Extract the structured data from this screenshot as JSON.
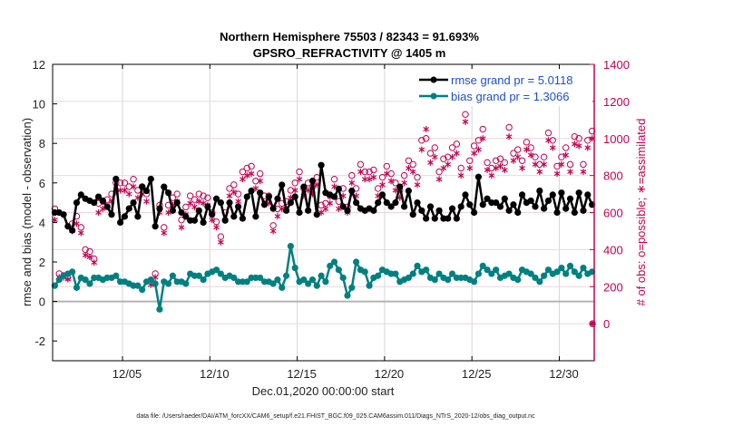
{
  "chart_data": {
    "type": "line",
    "title": "Northern Hemisphere 75503 / 82343 = 91.693%",
    "subtitle": "GPSRO_REFRACTIVITY @ 1405 m",
    "xlabel": "Dec.01,2020 00:00:00 start",
    "ylabel": "rmse and bias (model - observation)",
    "y2label": "# of obs: o=possible; ∗=assimilated",
    "footnote": "data file: /Users/raeder/DAI/ATM_forcXX/CAM6_setup/f.e21.FHIST_BGC.f09_025.CAM6assim.011/Diags_NTrS_2020-12/obs_diag_output.nc",
    "x_unit": "days since Dec.01,2020 00:00:00",
    "xlim": [
      0,
      31
    ],
    "ylim": [
      -3,
      12
    ],
    "y2lim": [
      -200,
      1400
    ],
    "grid": true,
    "legend_position": "top-right",
    "x_ticks": [
      {
        "value": 4,
        "label": "12/05"
      },
      {
        "value": 9,
        "label": "12/10"
      },
      {
        "value": 14,
        "label": "12/15"
      },
      {
        "value": 19,
        "label": "12/20"
      },
      {
        "value": 24,
        "label": "12/25"
      },
      {
        "value": 29,
        "label": "12/30"
      }
    ],
    "y_ticks": [
      {
        "value": -2,
        "label": "-2"
      },
      {
        "value": 0,
        "label": "0"
      },
      {
        "value": 2,
        "label": "2"
      },
      {
        "value": 4,
        "label": "4"
      },
      {
        "value": 6,
        "label": "6"
      },
      {
        "value": 8,
        "label": "8"
      },
      {
        "value": 10,
        "label": "10"
      },
      {
        "value": 12,
        "label": "12"
      }
    ],
    "y2_ticks": [
      {
        "value": 0,
        "label": "0"
      },
      {
        "value": 200,
        "label": "200"
      },
      {
        "value": 400,
        "label": "400"
      },
      {
        "value": 600,
        "label": "600"
      },
      {
        "value": 800,
        "label": "800"
      },
      {
        "value": 1000,
        "label": "1000"
      },
      {
        "value": 1200,
        "label": "1200"
      },
      {
        "value": 1400,
        "label": "1400"
      }
    ],
    "x_start": 0.125,
    "x_step": 0.25,
    "series": [
      {
        "name": "rmse grand pr = 5.0118",
        "axis": "left",
        "color": "#000000",
        "marker": "filled-circle",
        "values": [
          4.5,
          4.5,
          4.4,
          3.8,
          3.6,
          5.0,
          5.4,
          5.2,
          5.1,
          5.0,
          5.3,
          5.1,
          4.8,
          4.4,
          6.2,
          4.0,
          4.3,
          4.7,
          5.0,
          4.3,
          5.8,
          5.6,
          6.2,
          3.8,
          4.7,
          5.8,
          5.5,
          4.6,
          5.0,
          4.5,
          4.3,
          4.1,
          4.1,
          4.6,
          4.0,
          4.8,
          4.4,
          5.2,
          5.0,
          4.1,
          5.0,
          4.3,
          4.8,
          4.2,
          5.3,
          5.6,
          4.3,
          5.5,
          4.9,
          5.3,
          4.7,
          5.2,
          5.9,
          4.6,
          5.0,
          5.3,
          4.5,
          5.8,
          4.6,
          6.1,
          4.4,
          6.9,
          5.5,
          5.4,
          5.3,
          5.7,
          4.8,
          4.6,
          5.6,
          5.0,
          4.7,
          4.6,
          4.7,
          4.6,
          5.0,
          5.4,
          5.0,
          4.8,
          5.0,
          5.8,
          4.8,
          5.6,
          4.4,
          5.0,
          4.6,
          4.2,
          4.8,
          4.2,
          4.6,
          4.2,
          4.2,
          4.7,
          4.2,
          4.8,
          5.4,
          4.9,
          4.5,
          6.3,
          4.9,
          5.2,
          5.0,
          5.0,
          4.8,
          5.2,
          4.6,
          4.9,
          4.5,
          5.4,
          5.0,
          5.1,
          4.8,
          5.6,
          4.7,
          5.1,
          5.4,
          4.5,
          5.5,
          4.7,
          5.2,
          4.5,
          5.5,
          4.6,
          5.4,
          4.9,
          5.2,
          4.7,
          4.5,
          5.4,
          4.7,
          5.6,
          6.3,
          4.8,
          6.0,
          4.3,
          5.8
        ]
      },
      {
        "name": "bias grand pr = 1.3066",
        "axis": "left",
        "color": "#008080",
        "marker": "filled-circle",
        "values": [
          0.8,
          1.1,
          1.3,
          1.4,
          1.5,
          0.7,
          1.2,
          1.1,
          0.9,
          1.2,
          1.2,
          1.1,
          1.2,
          1.2,
          1.3,
          1.0,
          1.0,
          0.9,
          0.8,
          0.8,
          0.6,
          1.0,
          1.1,
          0.9,
          -0.4,
          1.0,
          0.9,
          1.3,
          1.0,
          1.0,
          0.9,
          1.4,
          1.3,
          1.3,
          1.1,
          1.4,
          1.5,
          1.6,
          1.4,
          1.2,
          1.3,
          1.2,
          1.0,
          1.0,
          1.0,
          1.2,
          1.2,
          1.2,
          1.0,
          1.0,
          0.9,
          1.1,
          0.7,
          1.3,
          2.8,
          1.7,
          1.0,
          1.1,
          0.9,
          1.1,
          0.8,
          1.3,
          1.0,
          1.8,
          2.0,
          1.6,
          1.2,
          0.3,
          0.7,
          2.0,
          1.6,
          1.5,
          0.8,
          1.2,
          1.3,
          1.6,
          1.5,
          1.4,
          1.4,
          1.0,
          1.1,
          1.2,
          1.4,
          1.8,
          1.5,
          1.6,
          1.2,
          1.1,
          1.4,
          1.2,
          1.1,
          1.4,
          1.2,
          1.2,
          1.2,
          1.1,
          1.0,
          1.4,
          1.8,
          1.6,
          1.4,
          1.6,
          1.2,
          1.3,
          1.4,
          1.2,
          1.1,
          1.6,
          1.5,
          1.4,
          1.2,
          1.0,
          1.3,
          1.6,
          1.4,
          1.5,
          1.7,
          1.4,
          1.8,
          1.5,
          1.3,
          1.7,
          1.4,
          1.5,
          1.8,
          1.2,
          1.4,
          1.3,
          1.5,
          1.8,
          1.3,
          0.9,
          1.2,
          1.5,
          2.0,
          1.3,
          1.1
        ]
      },
      {
        "name": "obs possible",
        "axis": "right",
        "color": "#c8004f",
        "marker": "open-circle",
        "values": [
          620,
          270,
          260,
          250,
          540,
          580,
          520,
          400,
          390,
          350,
          650,
          660,
          670,
          700,
          760,
          760,
          760,
          740,
          780,
          720,
          740,
          700,
          230,
          270,
          640,
          520,
          640,
          680,
          700,
          560,
          630,
          690,
          670,
          700,
          690,
          680,
          600,
          550,
          470,
          600,
          730,
          750,
          700,
          820,
          840,
          850,
          770,
          810,
          690,
          690,
          530,
          620,
          650,
          660,
          720,
          760,
          820,
          730,
          760,
          740,
          790,
          640,
          650,
          690,
          780,
          660,
          730,
          630,
          800,
          730,
          860,
          820,
          820,
          830,
          730,
          790,
          850,
          810,
          760,
          720,
          800,
          880,
          860,
          790,
          990,
          1000,
          920,
          950,
          820,
          890,
          900,
          950,
          970,
          840,
          1130,
          880,
          960,
          990,
          1050,
          870,
          840,
          880,
          890,
          870,
          1060,
          920,
          940,
          880,
          980,
          950,
          900,
          860,
          900,
          1030,
          990,
          850,
          900,
          950,
          860,
          1010,
          1000,
          860,
          990,
          1040,
          880,
          940,
          920,
          1020,
          840,
          690,
          1020,
          860,
          1000,
          830,
          1040,
          660
        ]
      },
      {
        "name": "obs assimilated",
        "axis": "right",
        "color": "#c8004f",
        "marker": "asterisk",
        "values": [
          560,
          250,
          250,
          240,
          500,
          540,
          490,
          370,
          360,
          330,
          600,
          620,
          630,
          660,
          710,
          720,
          720,
          700,
          740,
          680,
          700,
          660,
          210,
          250,
          600,
          490,
          600,
          640,
          660,
          520,
          590,
          650,
          630,
          660,
          650,
          640,
          560,
          520,
          440,
          560,
          690,
          710,
          660,
          780,
          800,
          810,
          730,
          770,
          650,
          650,
          500,
          580,
          620,
          620,
          680,
          720,
          780,
          690,
          720,
          700,
          750,
          600,
          620,
          650,
          740,
          620,
          690,
          600,
          760,
          690,
          820,
          780,
          780,
          790,
          690,
          750,
          810,
          770,
          720,
          680,
          760,
          840,
          820,
          750,
          940,
          1050,
          870,
          900,
          780,
          840,
          860,
          900,
          920,
          800,
          1090,
          840,
          920,
          940,
          1000,
          830,
          800,
          840,
          850,
          830,
          1010,
          880,
          900,
          840,
          940,
          910,
          860,
          820,
          860,
          990,
          950,
          810,
          860,
          910,
          820,
          970,
          960,
          820,
          950,
          1000,
          840,
          900,
          880,
          980,
          800,
          650,
          980,
          820,
          960,
          790,
          1000,
          620
        ]
      }
    ],
    "last_point": {
      "x": 30.9,
      "obs_possible": 0,
      "obs_assimilated": 0
    }
  }
}
